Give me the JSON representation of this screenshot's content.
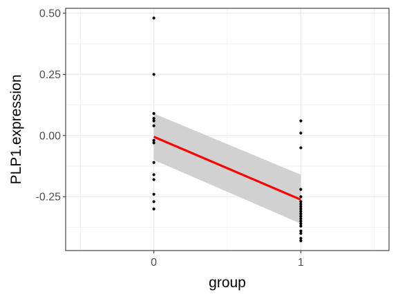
{
  "chart_data": {
    "type": "scatter",
    "xlabel": "group",
    "ylabel": "PLP1.expression",
    "xlim": [
      -0.6,
      1.6
    ],
    "ylim": [
      -0.47,
      0.52
    ],
    "x_ticks": [
      0,
      1
    ],
    "x_tick_labels": [
      "0",
      "1"
    ],
    "y_ticks": [
      -0.25,
      0,
      0.25,
      0.5
    ],
    "y_tick_labels": [
      "-0.25",
      "0.00",
      "0.25",
      "0.50"
    ],
    "grid": true,
    "series": [
      {
        "x": [
          0,
          0,
          0,
          0,
          0,
          0,
          0,
          0,
          0,
          0,
          0,
          0,
          0,
          0,
          1,
          1,
          1,
          1,
          1,
          1,
          1,
          1,
          1,
          1,
          1,
          1,
          1,
          1,
          1,
          1,
          1,
          1,
          1,
          1
        ],
        "y": [
          0.48,
          0.25,
          0.09,
          0.07,
          0.06,
          0.04,
          -0.02,
          -0.11,
          -0.16,
          -0.18,
          -0.24,
          -0.27,
          -0.3,
          -0.03,
          0.06,
          0.01,
          -0.05,
          -0.22,
          -0.25,
          -0.28,
          -0.29,
          -0.3,
          -0.31,
          -0.32,
          -0.33,
          -0.34,
          -0.36,
          -0.39,
          -0.4,
          -0.42,
          -0.43,
          -0.37,
          -0.35,
          -0.27
        ],
        "color": "#000000"
      }
    ],
    "fit": {
      "method": "lm",
      "color": "#ff0000",
      "x": [
        0,
        1
      ],
      "y": [
        -0.005,
        -0.262
      ],
      "ci_lower": [
        -0.1,
        -0.36
      ],
      "ci_upper": [
        0.09,
        -0.16
      ],
      "band_color": "#cccccc"
    }
  }
}
